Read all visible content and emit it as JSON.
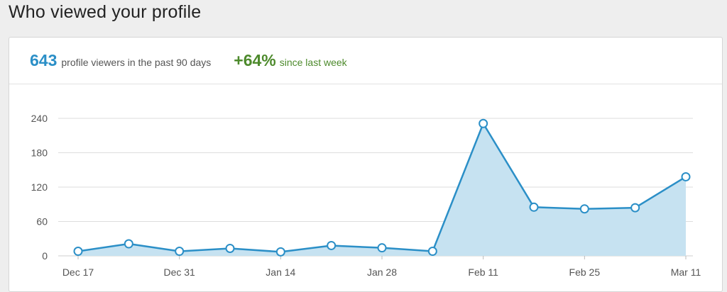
{
  "page": {
    "title": "Who viewed your profile"
  },
  "summary": {
    "viewers_count": "643",
    "viewers_label": "profile viewers in the past 90 days",
    "growth_value": "+64%",
    "growth_label": "since last week"
  },
  "colors": {
    "line": "#2b8fc7",
    "area": "#c6e2f1",
    "grid": "#dddddd",
    "growth": "#4d8a2c"
  },
  "chart_data": {
    "type": "area",
    "title": "",
    "xlabel": "",
    "ylabel": "",
    "x_tick_labels": [
      "Dec 17",
      "Dec 31",
      "Jan 14",
      "Jan 28",
      "Feb 11",
      "Feb 25",
      "Mar 11"
    ],
    "x": [
      "Dec 17",
      "Dec 24",
      "Dec 31",
      "Jan 7",
      "Jan 14",
      "Jan 21",
      "Jan 28",
      "Feb 4",
      "Feb 11",
      "Feb 18",
      "Feb 25",
      "Mar 4",
      "Mar 11"
    ],
    "series": [
      {
        "values": [
          8,
          21,
          8,
          13,
          7,
          18,
          14,
          8,
          231,
          85,
          82,
          84,
          138
        ]
      }
    ],
    "y_ticks": [
      0,
      60,
      120,
      180,
      240
    ],
    "ylim": [
      0,
      240
    ],
    "grid": true,
    "legend": false
  }
}
